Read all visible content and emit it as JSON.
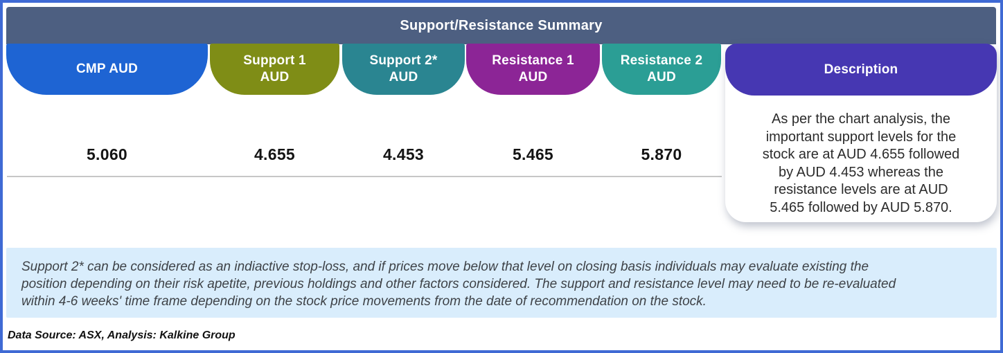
{
  "title": "Support/Resistance Summary",
  "columns": [
    {
      "label": "CMP AUD",
      "value": "5.060",
      "color": "#1e64d3"
    },
    {
      "label": "Support 1\nAUD",
      "value": "4.655",
      "color": "#7f8d16"
    },
    {
      "label": "Support 2*\nAUD",
      "value": "4.453",
      "color": "#2a8591"
    },
    {
      "label": "Resistance 1\nAUD",
      "value": "5.465",
      "color": "#8c2596"
    },
    {
      "label": "Resistance 2\nAUD",
      "value": "5.870",
      "color": "#2b9e95"
    }
  ],
  "description": {
    "header": "Description",
    "color": "#4637b2",
    "lines": [
      "As per the chart analysis, the",
      "important support levels for the",
      "stock are at AUD 4.655 followed",
      "by AUD 4.453 whereas the",
      "resistance levels are at AUD",
      "5.465 followed by AUD 5.870."
    ]
  },
  "footnote": {
    "lines": [
      "Support 2* can be considered as an indiactive stop-loss, and if prices move below that level on closing basis individuals may evaluate existing the",
      "position depending on their risk apetite, previous holdings and other factors considered. The support and resistance level may need to be re-evaluated",
      "within 4-6 weeks' time frame depending on the stock price movements from  the date of recommendation on the stock."
    ]
  },
  "data_source": "Data Source: ASX, Analysis: Kalkine Group",
  "colors": {
    "frame_border": "#3f6ad4",
    "title_bar": "#4d5f81",
    "footnote_bg": "#d9edfc",
    "divider": "#c6c6c6",
    "value_text": "#141414"
  },
  "chart_data": {
    "type": "table",
    "title": "Support/Resistance Summary",
    "columns": [
      "CMP AUD",
      "Support 1 AUD",
      "Support 2* AUD",
      "Resistance 1 AUD",
      "Resistance 2 AUD",
      "Description"
    ],
    "rows": [
      [
        "5.060",
        "4.655",
        "4.453",
        "5.465",
        "5.870",
        "As per the chart analysis, the important support levels for the stock are at AUD 4.655 followed by AUD 4.453 whereas the resistance levels are at AUD 5.465 followed by AUD 5.870."
      ]
    ],
    "currency": "AUD"
  }
}
